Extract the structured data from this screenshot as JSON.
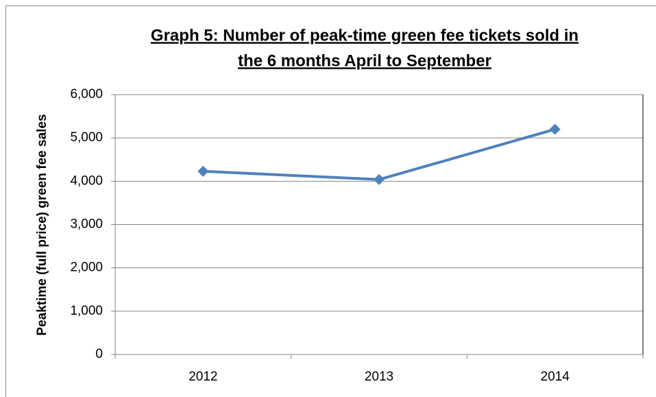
{
  "chart_data": {
    "type": "line",
    "title": [
      "Graph 5: Number of peak-time green fee tickets sold in",
      "the 6 months April to September"
    ],
    "y_label": "Peaktime (full price) green fee sales",
    "categories": [
      "2012",
      "2013",
      "2014"
    ],
    "series": [
      {
        "name": "Peaktime (full price) green fee sales",
        "color": "#4f81bd",
        "values": [
          4230,
          4040,
          5200
        ]
      }
    ],
    "ylim": [
      0,
      6000
    ],
    "yticks": [
      {
        "value": 0,
        "label": "0"
      },
      {
        "value": 1000,
        "label": "1,000"
      },
      {
        "value": 2000,
        "label": "2,000"
      },
      {
        "value": 3000,
        "label": "3,000"
      },
      {
        "value": 4000,
        "label": "4,000"
      },
      {
        "value": 5000,
        "label": "5,000"
      },
      {
        "value": 6000,
        "label": "6,000"
      }
    ],
    "grid": true
  }
}
